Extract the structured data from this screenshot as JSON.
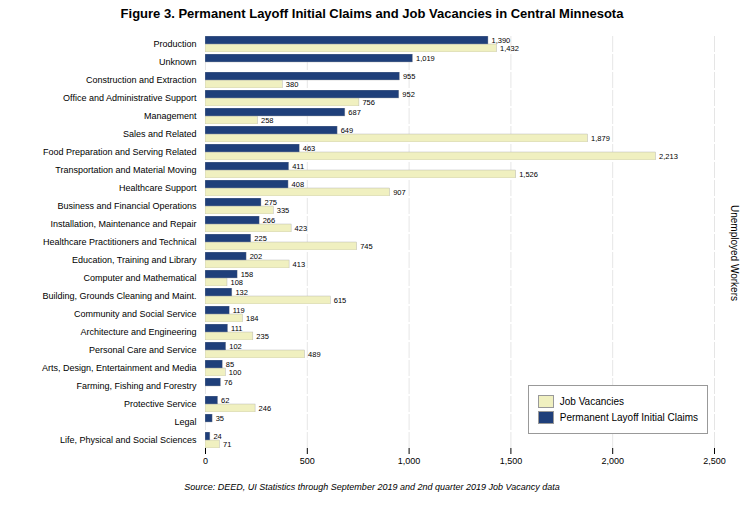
{
  "chart_data": {
    "type": "bar",
    "orientation": "horizontal",
    "title": "Figure 3. Permanent Layoff Initial Claims and Job Vacancies in Central Minnesota",
    "ylabel": "Unemployed Workers",
    "caption": "Source: DEED, UI Statistics through September 2019 and 2nd quarter 2019 Job Vacancy data",
    "categories": [
      "Production",
      "Unknown",
      "Construction and Extraction",
      "Office and Administrative Support",
      "Management",
      "Sales and Related",
      "Food Preparation and Serving Related",
      "Transportation and Material Moving",
      "Healthcare Support",
      "Business and Financial Operations",
      "Installation, Maintenance and Repair",
      "Healthcare Practitioners and Technical",
      "Education, Training and Library",
      "Computer and Mathematical",
      "Building, Grounds Cleaning and Maint.",
      "Community and Social Service",
      "Architecture and Engineering",
      "Personal Care and Service",
      "Arts, Design, Entertainment and Media",
      "Farming, Fishing and Forestry",
      "Protective Service",
      "Legal",
      "Life, Physical and Social Sciences"
    ],
    "series": [
      {
        "name": "Job Vacancies",
        "color": "#f0f0c0",
        "values": [
          1432,
          0,
          380,
          756,
          258,
          1879,
          2213,
          1526,
          907,
          335,
          423,
          745,
          413,
          108,
          615,
          184,
          235,
          489,
          100,
          0,
          246,
          0,
          71
        ],
        "value_labels": [
          "1,432",
          null,
          "380",
          "756",
          "258",
          "1,879",
          "2,213",
          "1,526",
          "907",
          "335",
          "423",
          "745",
          "413",
          "108",
          "615",
          "184",
          "235",
          "489",
          "100",
          null,
          "246",
          null,
          "71"
        ]
      },
      {
        "name": "Permanent Layoff Initial Claims",
        "color": "#1f3f7a",
        "values": [
          1390,
          1019,
          955,
          952,
          687,
          649,
          463,
          411,
          408,
          275,
          266,
          225,
          202,
          158,
          132,
          119,
          111,
          102,
          85,
          76,
          62,
          35,
          24
        ],
        "value_labels": [
          "1,390",
          "1,019",
          "955",
          "952",
          "687",
          "649",
          "463",
          "411",
          "408",
          "275",
          "266",
          "225",
          "202",
          "158",
          "132",
          "119",
          "111",
          "102",
          "85",
          "76",
          "62",
          "35",
          "24"
        ]
      }
    ],
    "xlim": [
      0,
      2500
    ],
    "xticks": [
      0,
      500,
      {
        "value": 1000,
        "label": "1,000"
      },
      {
        "value": 1500,
        "label": "1,500"
      },
      {
        "value": 2000,
        "label": "2,000"
      },
      {
        "value": 2500,
        "label": "2,500"
      }
    ],
    "grid": true,
    "legend": "lower right",
    "data_labels": true
  }
}
